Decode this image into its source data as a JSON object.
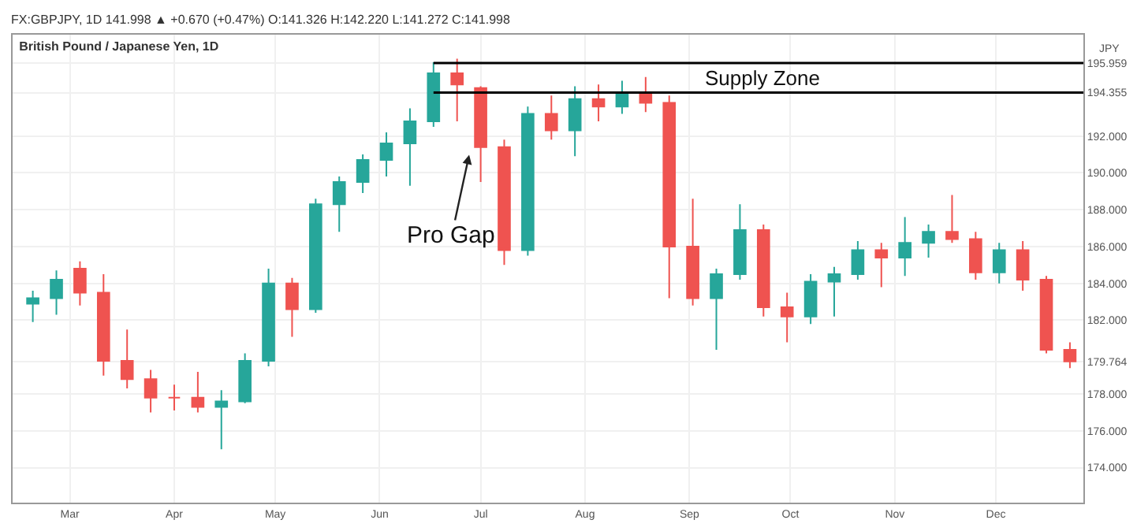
{
  "chart_data": {
    "type": "candlestick",
    "title": "British Pound / Japanese Yen, 1D",
    "subtitle": "FX:GBPJPY, 1D 141.998 ▲ +0.670 (+0.47%) O:141.326 H:142.220 L:141.272 C:141.998",
    "ylabel": "JPY",
    "x": [
      "--02-19",
      "--02-26",
      "--03-04",
      "--03-11",
      "--03-18",
      "--03-25",
      "--04-01",
      "--04-08",
      "--04-15",
      "--04-22",
      "--04-29",
      "--05-06",
      "--05-13",
      "--05-20",
      "--05-27",
      "--06-03",
      "--06-10",
      "--06-17",
      "--06-24",
      "--07-01",
      "--07-08",
      "--07-15",
      "--07-22",
      "--07-29",
      "--08-05",
      "--08-12",
      "--08-19",
      "--08-26",
      "--09-02",
      "--09-09",
      "--09-16",
      "--09-23",
      "--09-30",
      "--10-07",
      "--10-14",
      "--10-21",
      "--10-28",
      "--11-04",
      "--11-11",
      "--11-18",
      "--11-25",
      "--12-02",
      "--12-09",
      "--12-16",
      "--12-23"
    ],
    "ohlc": [
      [
        182.9,
        183.6,
        181.9,
        183.2
      ],
      [
        183.2,
        184.7,
        182.3,
        184.2
      ],
      [
        184.8,
        185.2,
        182.8,
        183.5
      ],
      [
        183.5,
        184.5,
        179,
        179.8
      ],
      [
        179.8,
        181.5,
        178.3,
        178.8
      ],
      [
        178.8,
        179.3,
        177,
        177.8
      ],
      [
        177.8,
        178.5,
        177.1,
        177.8
      ],
      [
        177.8,
        179.2,
        177,
        177.3
      ],
      [
        177.3,
        178.2,
        175,
        177.6
      ],
      [
        177.6,
        180.2,
        177.5,
        179.8
      ],
      [
        179.8,
        184.8,
        179.5,
        184
      ],
      [
        184,
        184.3,
        181.1,
        182.6
      ],
      [
        182.6,
        188.6,
        182.4,
        188.3
      ],
      [
        188.3,
        189.8,
        186.8,
        189.5
      ],
      [
        189.5,
        191,
        188.9,
        190.7
      ],
      [
        190.7,
        192.2,
        189.8,
        191.6
      ],
      [
        191.6,
        193.5,
        189.3,
        192.8
      ],
      [
        192.8,
        196,
        192.5,
        195.4
      ],
      [
        195.4,
        196.2,
        192.8,
        194.8
      ],
      [
        194.6,
        194.7,
        189.5,
        191.4
      ],
      [
        191.4,
        191.8,
        185,
        185.8
      ],
      [
        185.8,
        193.6,
        185.5,
        193.2
      ],
      [
        193.2,
        194.2,
        191.8,
        192.3
      ],
      [
        192.3,
        194.7,
        190.9,
        194
      ],
      [
        194,
        194.8,
        192.8,
        193.6
      ],
      [
        193.6,
        195,
        193.2,
        194.3
      ],
      [
        194.3,
        195.2,
        193.3,
        193.8
      ],
      [
        193.8,
        194.2,
        183.2,
        186
      ],
      [
        186,
        188.6,
        182.8,
        183.2
      ],
      [
        183.2,
        184.8,
        180.4,
        184.5
      ],
      [
        184.5,
        188.3,
        184.2,
        186.9
      ],
      [
        186.9,
        187.2,
        182.2,
        182.7
      ],
      [
        182.7,
        183.5,
        180.8,
        182.2
      ],
      [
        182.2,
        184.5,
        181.8,
        184.1
      ],
      [
        184.1,
        184.9,
        182.2,
        184.5
      ],
      [
        184.5,
        186.3,
        184.2,
        185.8
      ],
      [
        185.8,
        186.2,
        183.8,
        185.4
      ],
      [
        185.4,
        187.6,
        184.4,
        186.2
      ],
      [
        186.2,
        187.2,
        185.4,
        186.8
      ],
      [
        186.8,
        188.8,
        186.2,
        186.4
      ],
      [
        186.4,
        186.8,
        184.2,
        184.6
      ],
      [
        184.6,
        186.2,
        184,
        185.8
      ],
      [
        185.8,
        186.3,
        183.6,
        184.2
      ],
      [
        184.2,
        184.4,
        180.2,
        180.4
      ],
      [
        180.4,
        180.8,
        179.4,
        179.764
      ]
    ],
    "series": [
      {
        "type": "line",
        "color": "#000000",
        "x": [
          "--06-17",
          "--12-27"
        ],
        "values": [
          195.959,
          195.959
        ]
      },
      {
        "type": "line",
        "color": "#000000",
        "x": [
          "--06-17",
          "--12-27"
        ],
        "values": [
          194.355,
          194.355
        ]
      }
    ],
    "xlim": [
      "--02-13",
      "--12-27"
    ],
    "xticks": [
      {
        "value": "--03-01",
        "label": "Mar"
      },
      {
        "value": "--04-01",
        "label": "Apr"
      },
      {
        "value": "--05-01",
        "label": "May"
      },
      {
        "value": "--06-01",
        "label": "Jun"
      },
      {
        "value": "--07-01",
        "label": "Jul"
      },
      {
        "value": "--08-01",
        "label": "Aug"
      },
      {
        "value": "--09-01",
        "label": "Sep"
      },
      {
        "value": "--10-01",
        "label": "Oct"
      },
      {
        "value": "--11-01",
        "label": "Nov"
      },
      {
        "value": "--12-01",
        "label": "Dec"
      }
    ],
    "ylim": [
      172.1,
      197.5
    ],
    "yticks": [
      {
        "value": 174,
        "label": "174.000"
      },
      {
        "value": 176,
        "label": "176.000"
      },
      {
        "value": 178,
        "label": "178.000"
      },
      {
        "value": 179.764,
        "label": "179.764"
      },
      {
        "value": 182,
        "label": "182.000"
      },
      {
        "value": 184,
        "label": "184.000"
      },
      {
        "value": 186,
        "label": "186.000"
      },
      {
        "value": 188,
        "label": "188.000"
      },
      {
        "value": 190,
        "label": "190.000"
      },
      {
        "value": 192,
        "label": "192.000"
      },
      {
        "value": 194.355,
        "label": "194.355"
      },
      {
        "value": 195.959,
        "label": "195.959"
      }
    ],
    "grid": true,
    "annotations": [
      "Supply Zone",
      "Pro Gap"
    ]
  }
}
